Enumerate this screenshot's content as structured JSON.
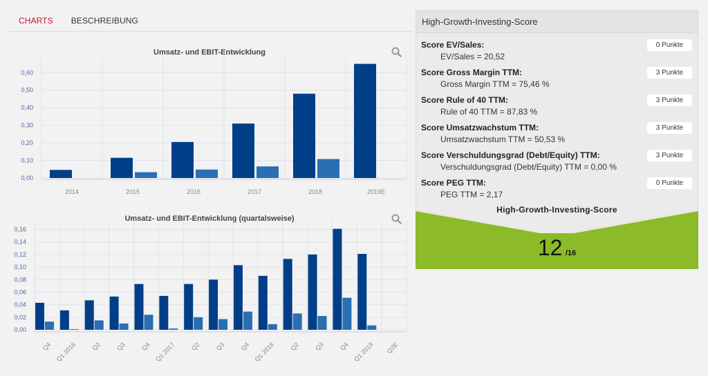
{
  "tabs": [
    {
      "label": "CHARTS",
      "active": true
    },
    {
      "label": "BESCHREIBUNG",
      "active": false
    }
  ],
  "colors": {
    "primary": "#003f87",
    "secondary": "#2a6eb3",
    "accent_green": "#8cba28",
    "active_tab": "#c8102e"
  },
  "chart_data": [
    {
      "type": "bar",
      "title": "Umsatz- und EBIT-Entwicklung",
      "categories": [
        "2014",
        "2015",
        "2016",
        "2017",
        "2018",
        "2019E"
      ],
      "series": [
        {
          "values": [
            0.046,
            0.115,
            0.205,
            0.31,
            0.48,
            0.65
          ]
        },
        {
          "values": [
            null,
            0.033,
            0.048,
            0.066,
            0.108,
            null
          ]
        }
      ],
      "y_ticks": [
        "0,00",
        "0,10",
        "0,20",
        "0,30",
        "0,40",
        "0,50",
        "0,60"
      ],
      "ylim": [
        0,
        0.66
      ],
      "grid": true
    },
    {
      "type": "bar",
      "title": "Umsatz- und EBIT-Entwicklung (quartalsweise)",
      "categories": [
        "Q4",
        "Q1 2016",
        "Q2",
        "Q3",
        "Q4",
        "Q1 2017",
        "Q2",
        "Q3",
        "Q4",
        "Q1 2018",
        "Q2",
        "Q3",
        "Q4",
        "Q1 2019",
        "Q2E"
      ],
      "series": [
        {
          "values": [
            0.043,
            0.031,
            0.047,
            0.053,
            0.073,
            0.054,
            0.073,
            0.08,
            0.103,
            0.086,
            0.113,
            0.12,
            0.161,
            0.121,
            null
          ]
        },
        {
          "values": [
            0.013,
            0.001,
            0.015,
            0.01,
            0.024,
            0.002,
            0.02,
            0.017,
            0.029,
            0.009,
            0.026,
            0.022,
            0.051,
            0.007,
            null
          ]
        }
      ],
      "y_ticks": [
        "0,00",
        "0,02",
        "0,04",
        "0,06",
        "0,08",
        "0,10",
        "0,12",
        "0,14",
        "0,16"
      ],
      "ylim": [
        0,
        0.165
      ],
      "grid": true
    }
  ],
  "score_panel": {
    "title": "High-Growth-Investing-Score",
    "items": [
      {
        "name": "Score EV/Sales:",
        "detail": "EV/Sales = 20,52",
        "points": "0 Punkte"
      },
      {
        "name": "Score Gross Margin TTM:",
        "detail": "Gross Margin TTM = 75,46 %",
        "points": "3 Punkte"
      },
      {
        "name": "Score Rule of 40 TTM:",
        "detail": "Rule of 40 TTM = 87,83 %",
        "points": "3 Punkte"
      },
      {
        "name": "Score Umsatzwachstum TTM:",
        "detail": "Umsatzwachstum TTM = 50,53 %",
        "points": "3 Punkte"
      },
      {
        "name": "Score Verschuldungsgrad (Debt/Equity) TTM:",
        "detail": "Verschuldungsgrad (Debt/Equity) TTM = 0,00 %",
        "points": "3 Punkte"
      },
      {
        "name": "Score PEG TTM:",
        "detail": "PEG TTM = 2,17",
        "points": "0 Punkte"
      }
    ],
    "total_label": "High-Growth-Investing-Score",
    "total_value": "12",
    "total_max": "/16"
  },
  "icons": {
    "zoom": "magnifier-icon"
  }
}
